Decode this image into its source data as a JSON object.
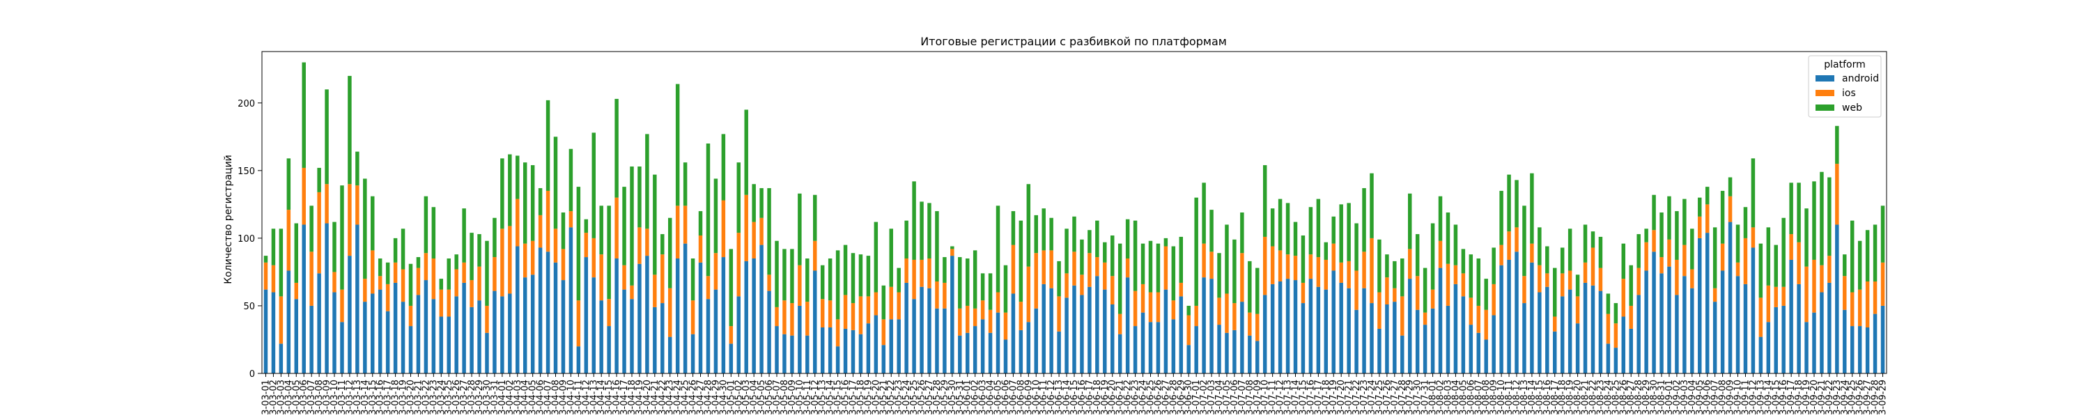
{
  "chart_data": {
    "type": "bar",
    "stacked": true,
    "title": "Итоговые регистрации с разбивкой по платформам",
    "xlabel": "",
    "ylabel": "Количество регистраций",
    "ylim": [
      0,
      238
    ],
    "yticks": [
      0,
      50,
      100,
      150,
      200
    ],
    "grid": false,
    "legend": {
      "title": "platform",
      "position": "top-right"
    },
    "x_start_date": "2023-03-01",
    "x_label_prefix_cut": "202",
    "series": [
      {
        "name": "android",
        "color": "#1f77b4",
        "values": [
          62,
          60,
          22,
          76,
          55,
          110,
          50,
          74,
          111,
          60,
          38,
          87,
          110,
          53,
          59,
          62,
          46,
          67,
          53,
          35,
          58,
          69,
          55,
          42,
          42,
          57,
          67,
          49,
          54,
          30,
          61,
          57,
          59,
          94,
          71,
          73,
          93,
          90,
          82,
          69,
          108,
          20,
          86,
          71,
          54,
          35,
          85,
          62,
          55,
          81,
          87,
          49,
          52,
          27,
          85,
          96,
          29,
          82,
          55,
          62,
          86,
          22,
          57,
          83,
          85,
          95,
          61,
          35,
          29,
          28,
          50,
          28,
          76,
          34,
          34,
          20,
          33,
          32,
          29,
          37,
          43,
          21,
          40,
          40,
          67,
          55,
          64,
          63,
          48,
          48,
          87,
          28,
          30,
          35,
          40,
          30,
          45,
          25,
          59,
          32,
          38,
          48,
          66,
          63,
          31,
          56,
          65,
          58,
          64,
          72,
          62,
          51,
          29,
          71,
          35,
          45,
          38,
          38,
          62,
          40,
          57,
          21,
          35,
          71,
          70,
          36,
          30,
          32,
          53,
          28,
          24,
          58,
          66,
          68,
          70,
          69,
          52,
          70,
          64,
          62,
          76,
          67,
          63,
          47,
          63,
          52,
          33,
          51,
          53,
          28,
          70,
          47,
          36,
          48,
          78,
          50,
          66,
          57,
          36,
          30,
          25,
          43,
          80,
          84,
          90,
          52,
          82,
          60,
          64,
          31,
          57,
          62,
          37,
          67,
          65,
          61,
          22,
          19,
          42,
          33,
          58,
          76,
          90,
          74,
          79,
          58,
          72,
          63,
          100,
          104,
          53,
          76,
          112,
          72,
          66,
          93,
          27,
          38,
          49,
          50,
          84,
          66,
          38,
          45,
          60,
          67,
          110,
          47,
          35,
          35,
          34,
          44,
          50
        ]
      },
      {
        "name": "ios",
        "color": "#ff7f0e",
        "values": [
          20,
          20,
          35,
          45,
          12,
          42,
          40,
          60,
          29,
          15,
          24,
          53,
          29,
          17,
          32,
          10,
          20,
          15,
          24,
          15,
          20,
          20,
          30,
          20,
          20,
          20,
          15,
          20,
          25,
          20,
          25,
          50,
          50,
          35,
          25,
          25,
          24,
          45,
          25,
          23,
          12,
          34,
          18,
          29,
          34,
          20,
          45,
          18,
          10,
          27,
          20,
          24,
          36,
          36,
          39,
          28,
          25,
          20,
          17,
          27,
          42,
          13,
          47,
          49,
          27,
          20,
          12,
          14,
          25,
          24,
          30,
          25,
          22,
          21,
          20,
          20,
          25,
          20,
          28,
          20,
          17,
          19,
          24,
          20,
          18,
          29,
          20,
          22,
          20,
          19,
          5,
          20,
          20,
          13,
          14,
          17,
          15,
          20,
          36,
          21,
          41,
          41,
          25,
          28,
          26,
          18,
          25,
          15,
          25,
          14,
          20,
          21,
          15,
          14,
          26,
          21,
          22,
          22,
          32,
          14,
          10,
          22,
          15,
          25,
          20,
          20,
          29,
          20,
          36,
          17,
          20,
          43,
          28,
          23,
          18,
          18,
          15,
          18,
          22,
          22,
          20,
          15,
          20,
          29,
          27,
          48,
          27,
          20,
          10,
          29,
          22,
          25,
          9,
          14,
          20,
          31,
          14,
          17,
          20,
          20,
          22,
          23,
          15,
          21,
          18,
          20,
          14,
          20,
          10,
          11,
          17,
          14,
          20,
          15,
          28,
          17,
          22,
          18,
          28,
          17,
          20,
          21,
          16,
          12,
          20,
          26,
          23,
          14,
          16,
          21,
          10,
          20,
          19,
          10,
          34,
          15,
          29,
          27,
          15,
          14,
          19,
          31,
          41,
          39,
          20,
          20,
          45,
          25,
          25,
          27,
          34,
          24,
          32
        ]
      },
      {
        "name": "web",
        "color": "#2ca02c",
        "values": [
          5,
          27,
          50,
          38,
          44,
          78,
          34,
          18,
          70,
          37,
          77,
          80,
          25,
          74,
          40,
          13,
          16,
          18,
          30,
          31,
          8,
          42,
          38,
          8,
          23,
          11,
          40,
          35,
          24,
          48,
          29,
          52,
          53,
          32,
          60,
          56,
          20,
          67,
          68,
          27,
          46,
          84,
          10,
          78,
          36,
          69,
          73,
          58,
          88,
          45,
          70,
          74,
          15,
          52,
          90,
          32,
          31,
          18,
          98,
          55,
          49,
          57,
          52,
          63,
          28,
          22,
          64,
          49,
          38,
          40,
          53,
          32,
          34,
          25,
          31,
          51,
          37,
          37,
          31,
          30,
          52,
          25,
          43,
          18,
          28,
          58,
          43,
          41,
          52,
          19,
          2,
          38,
          35,
          43,
          20,
          27,
          64,
          35,
          25,
          60,
          61,
          28,
          31,
          24,
          26,
          33,
          26,
          26,
          17,
          27,
          15,
          30,
          52,
          29,
          52,
          30,
          38,
          36,
          6,
          40,
          34,
          7,
          80,
          45,
          31,
          33,
          51,
          47,
          30,
          38,
          34,
          53,
          28,
          38,
          38,
          25,
          35,
          35,
          43,
          13,
          20,
          43,
          43,
          35,
          47,
          48,
          39,
          17,
          20,
          28,
          41,
          31,
          33,
          49,
          33,
          38,
          30,
          18,
          32,
          35,
          23,
          27,
          40,
          42,
          35,
          52,
          52,
          28,
          20,
          36,
          19,
          31,
          16,
          28,
          12,
          23,
          15,
          15,
          26,
          30,
          25,
          10,
          26,
          33,
          32,
          36,
          34,
          30,
          14,
          13,
          45,
          39,
          14,
          28,
          23,
          51,
          40,
          43,
          31,
          51,
          38,
          44,
          43,
          58,
          69,
          58,
          28,
          16,
          53,
          36,
          38,
          42,
          42
        ]
      }
    ]
  }
}
